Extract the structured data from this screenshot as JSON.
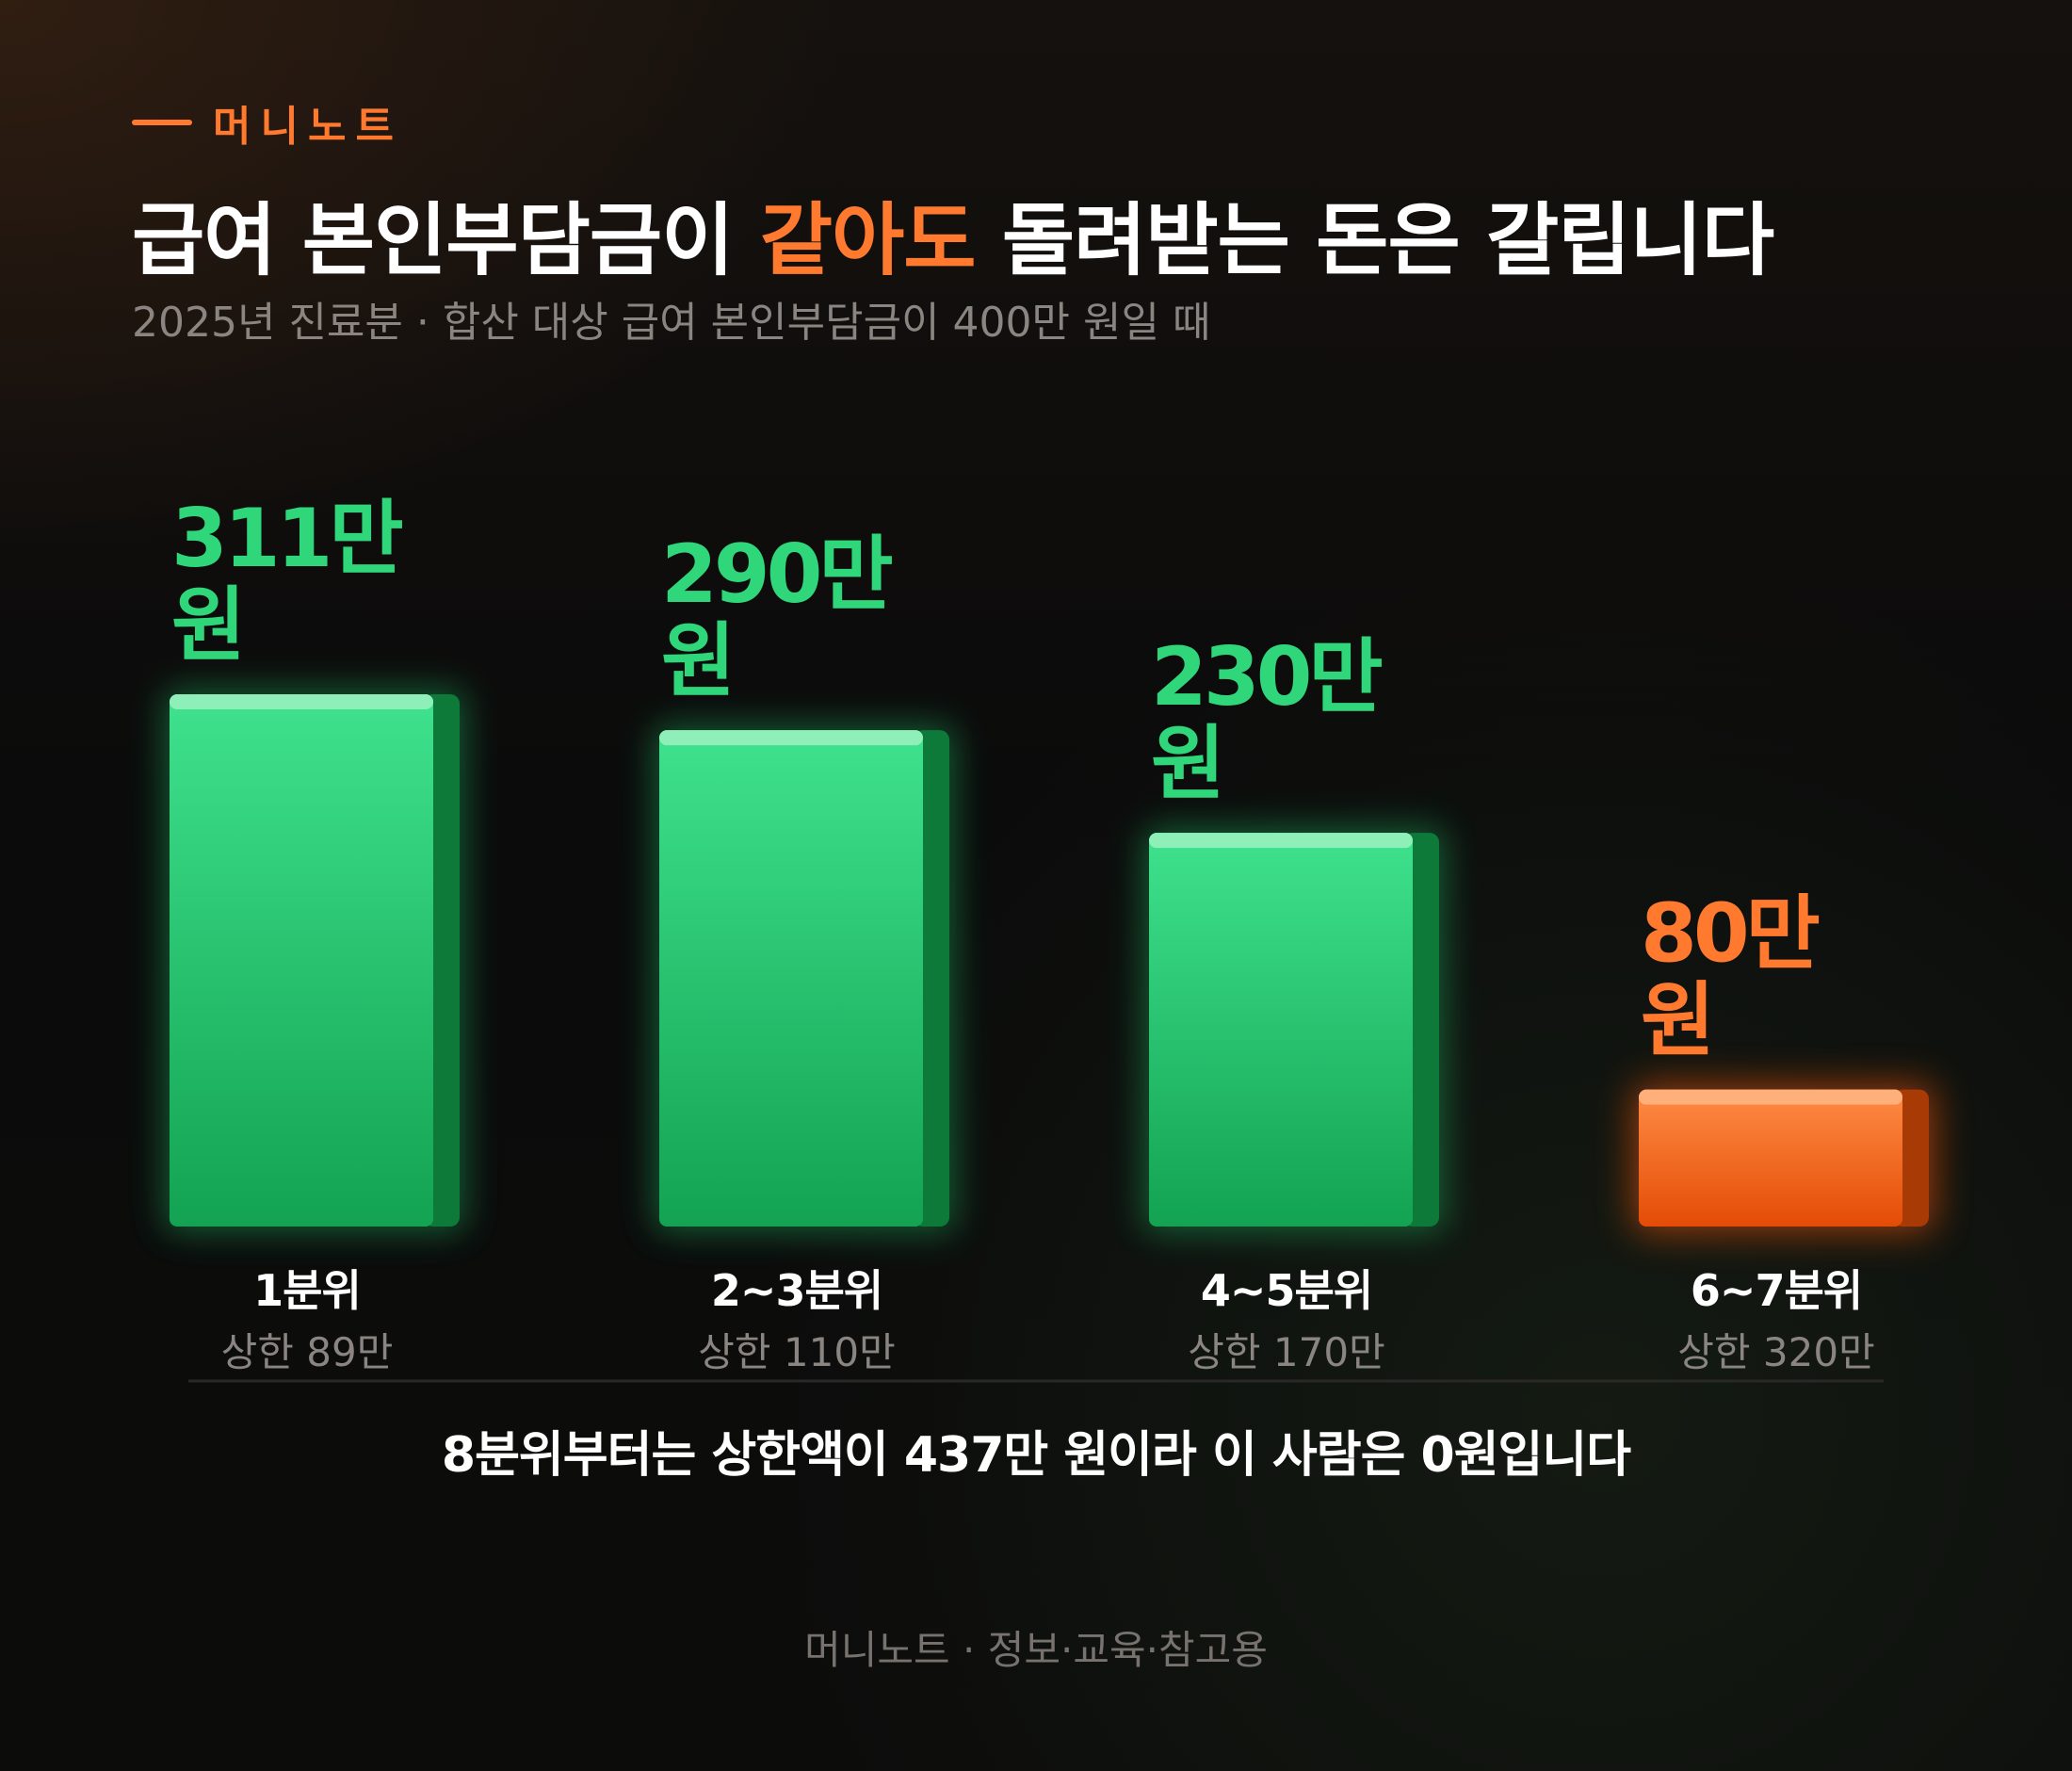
{
  "brand": "머니노트",
  "title": {
    "before": "급여 본인부담금이 ",
    "highlight": "같아도",
    "after": " 돌려받는 돈은 갈립니다"
  },
  "subtitle": "2025년 진료분 · 합산 대상 급여 본인부담금이 400만 원일 때",
  "colors": {
    "accent": "#ff7a2f",
    "green": "#2fd67a",
    "orange": "#ff7a2f"
  },
  "chart_data": {
    "type": "bar",
    "categories": [
      "1분위",
      "2~3분위",
      "4~5분위",
      "6~7분위"
    ],
    "values": [
      311,
      290,
      230,
      80
    ],
    "value_labels": [
      [
        "311만",
        "원"
      ],
      [
        "290만",
        "원"
      ],
      [
        "230만",
        "원"
      ],
      [
        "80만",
        "원"
      ]
    ],
    "caps": [
      "상한 89만",
      "상한 110만",
      "상한 170만",
      "상한 320만"
    ],
    "highlight": [
      false,
      false,
      false,
      true
    ],
    "ylim": [
      0,
      311
    ],
    "grid": false
  },
  "note": "8분위부터는 상한액이 437만 원이라 이 사람은 0원입니다",
  "footer": "머니노트 · 정보·교육·참고용"
}
